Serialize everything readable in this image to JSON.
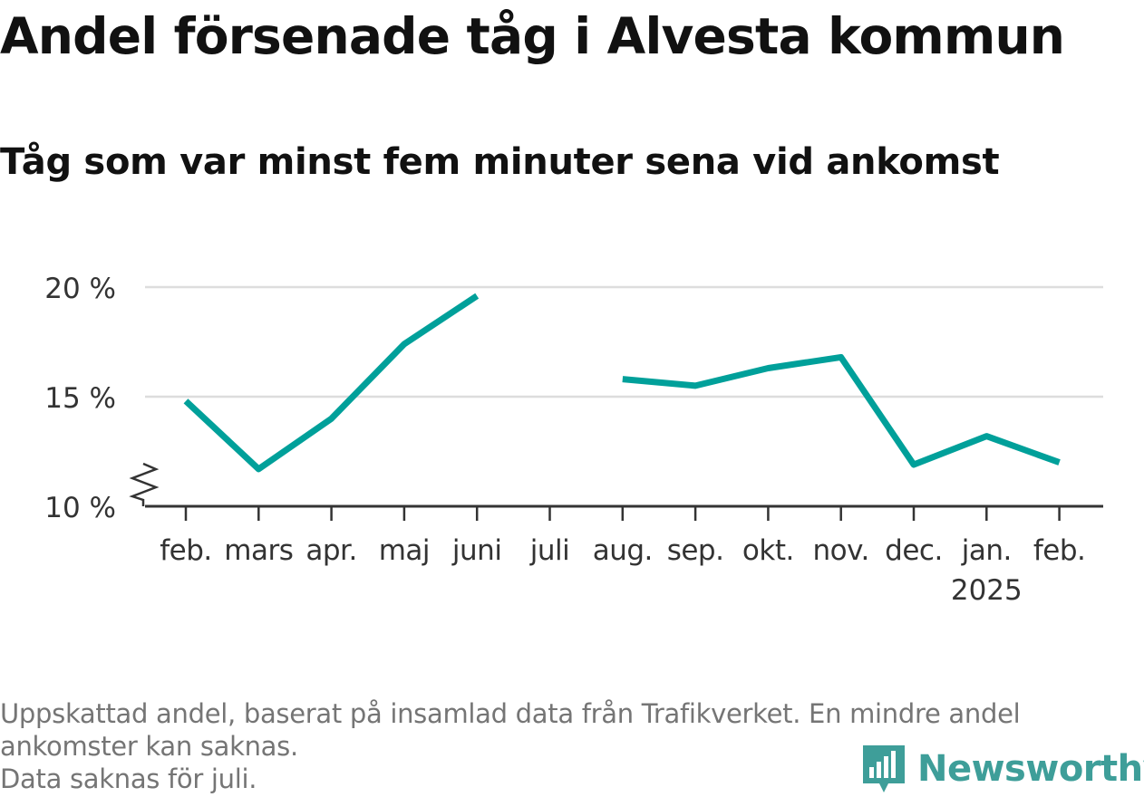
{
  "title": "Andel försenade tåg i Alvesta kommun",
  "subtitle": "Tåg som var minst fem minuter sena vid ankomst",
  "footer": {
    "note1": "Uppskattad andel, baserat på insamlad data från Trafikverket. En mindre andel ankomster kan saknas.",
    "note2": "Data saknas för juli."
  },
  "logo": {
    "text": "Newsworthy",
    "icon": "newsworthy-bar-chart-icon"
  },
  "colors": {
    "line": "#00a09a",
    "grid": "#dddddd",
    "axis": "#333333",
    "text": "#333333",
    "logo": "#3e9e99"
  },
  "chart_data": {
    "type": "line",
    "categories": [
      "feb.",
      "mars",
      "apr.",
      "maj",
      "juni",
      "juli",
      "aug.",
      "sep.",
      "okt.",
      "nov.",
      "dec.",
      "jan.",
      "feb."
    ],
    "year_label": {
      "index": 11,
      "text": "2025"
    },
    "series": [
      {
        "values": [
          14.8,
          11.7,
          14.0,
          17.4,
          19.6,
          null,
          15.8,
          15.5,
          16.3,
          16.8,
          11.9,
          13.2,
          12.0
        ]
      }
    ],
    "yticks": [
      10,
      15,
      20
    ],
    "ytick_labels": [
      "10 %",
      "15 %",
      "20 %"
    ],
    "ylim": [
      10,
      20
    ],
    "y_axis_break": true,
    "grid": true,
    "xlabel": "",
    "ylabel": ""
  }
}
